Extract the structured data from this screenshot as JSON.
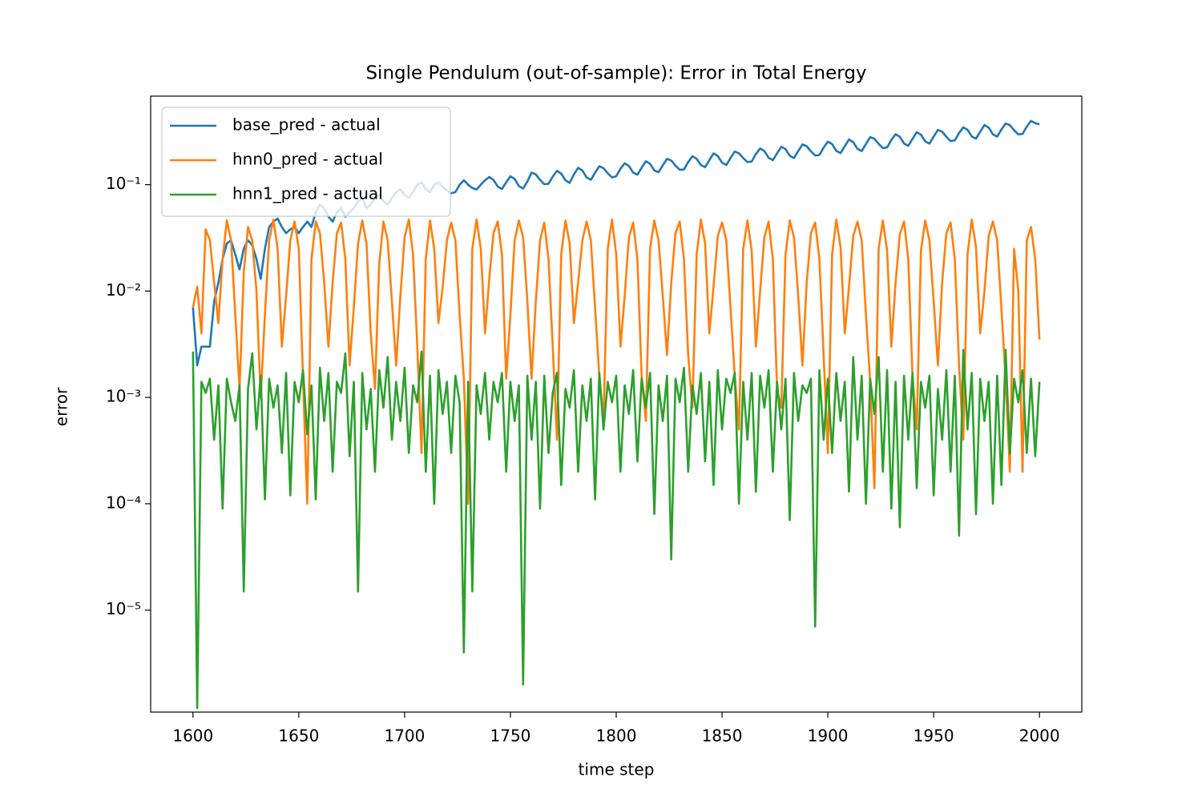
{
  "chart_data": {
    "type": "line",
    "title": "Single Pendulum (out-of-sample): Error in Total Energy",
    "xlabel": "time step",
    "ylabel": "error",
    "yscale": "log",
    "legend": "upper left",
    "xlim": [
      1580,
      2020
    ],
    "ylim": [
      1.1e-06,
      0.68
    ],
    "xticks": [
      1600,
      1650,
      1700,
      1750,
      1800,
      1850,
      1900,
      1950,
      2000
    ],
    "yticks": [
      {
        "value": 1e-05,
        "label": "10⁻⁵"
      },
      {
        "value": 0.0001,
        "label": "10⁻⁴"
      },
      {
        "value": 0.001,
        "label": "10⁻³"
      },
      {
        "value": 0.01,
        "label": "10⁻²"
      },
      {
        "value": 0.1,
        "label": "10⁻¹"
      }
    ],
    "x": [
      1600,
      1602,
      1604,
      1606,
      1608,
      1610,
      1612,
      1614,
      1616,
      1618,
      1620,
      1622,
      1624,
      1626,
      1628,
      1630,
      1632,
      1634,
      1636,
      1638,
      1640,
      1642,
      1644,
      1646,
      1648,
      1650,
      1652,
      1654,
      1656,
      1658,
      1660,
      1662,
      1664,
      1666,
      1668,
      1670,
      1672,
      1674,
      1676,
      1678,
      1680,
      1682,
      1684,
      1686,
      1688,
      1690,
      1692,
      1694,
      1696,
      1698,
      1700,
      1702,
      1704,
      1706,
      1708,
      1710,
      1712,
      1714,
      1716,
      1718,
      1720,
      1722,
      1724,
      1726,
      1728,
      1730,
      1732,
      1734,
      1736,
      1738,
      1740,
      1742,
      1744,
      1746,
      1748,
      1750,
      1752,
      1754,
      1756,
      1758,
      1760,
      1762,
      1764,
      1766,
      1768,
      1770,
      1772,
      1774,
      1776,
      1778,
      1780,
      1782,
      1784,
      1786,
      1788,
      1790,
      1792,
      1794,
      1796,
      1798,
      1800,
      1802,
      1804,
      1806,
      1808,
      1810,
      1812,
      1814,
      1816,
      1818,
      1820,
      1822,
      1824,
      1826,
      1828,
      1830,
      1832,
      1834,
      1836,
      1838,
      1840,
      1842,
      1844,
      1846,
      1848,
      1850,
      1852,
      1854,
      1856,
      1858,
      1860,
      1862,
      1864,
      1866,
      1868,
      1870,
      1872,
      1874,
      1876,
      1878,
      1880,
      1882,
      1884,
      1886,
      1888,
      1890,
      1892,
      1894,
      1896,
      1898,
      1900,
      1902,
      1904,
      1906,
      1908,
      1910,
      1912,
      1914,
      1916,
      1918,
      1920,
      1922,
      1924,
      1926,
      1928,
      1930,
      1932,
      1934,
      1936,
      1938,
      1940,
      1942,
      1944,
      1946,
      1948,
      1950,
      1952,
      1954,
      1956,
      1958,
      1960,
      1962,
      1964,
      1966,
      1968,
      1970,
      1972,
      1974,
      1976,
      1978,
      1980,
      1982,
      1984,
      1986,
      1988,
      1990,
      1992,
      1994,
      1996,
      1998,
      2000
    ],
    "series": [
      {
        "name": "base_pred - actual",
        "color": "#1f77b4",
        "values": [
          0.007,
          0.002,
          0.003,
          0.003,
          0.003,
          0.008,
          0.012,
          0.02,
          0.028,
          0.03,
          0.022,
          0.016,
          0.025,
          0.03,
          0.027,
          0.02,
          0.013,
          0.025,
          0.04,
          0.045,
          0.048,
          0.04,
          0.035,
          0.038,
          0.04,
          0.035,
          0.04,
          0.045,
          0.04,
          0.055,
          0.065,
          0.06,
          0.05,
          0.045,
          0.055,
          0.06,
          0.05,
          0.055,
          0.06,
          0.07,
          0.075,
          0.06,
          0.065,
          0.075,
          0.08,
          0.07,
          0.065,
          0.075,
          0.085,
          0.09,
          0.08,
          0.075,
          0.085,
          0.1,
          0.105,
          0.09,
          0.085,
          0.1,
          0.105,
          0.095,
          0.088,
          0.083,
          0.085,
          0.1,
          0.11,
          0.1,
          0.093,
          0.09,
          0.1,
          0.11,
          0.118,
          0.111,
          0.096,
          0.091,
          0.105,
          0.12,
          0.113,
          0.097,
          0.092,
          0.107,
          0.13,
          0.125,
          0.111,
          0.101,
          0.102,
          0.119,
          0.135,
          0.127,
          0.11,
          0.104,
          0.125,
          0.144,
          0.136,
          0.117,
          0.111,
          0.129,
          0.149,
          0.143,
          0.128,
          0.117,
          0.12,
          0.141,
          0.159,
          0.15,
          0.13,
          0.124,
          0.144,
          0.166,
          0.157,
          0.136,
          0.131,
          0.152,
          0.175,
          0.169,
          0.151,
          0.138,
          0.139,
          0.163,
          0.185,
          0.175,
          0.153,
          0.146,
          0.17,
          0.197,
          0.186,
          0.161,
          0.153,
          0.178,
          0.205,
          0.197,
          0.178,
          0.163,
          0.165,
          0.194,
          0.219,
          0.207,
          0.179,
          0.17,
          0.197,
          0.227,
          0.216,
          0.187,
          0.178,
          0.207,
          0.239,
          0.23,
          0.206,
          0.188,
          0.19,
          0.223,
          0.254,
          0.241,
          0.208,
          0.198,
          0.23,
          0.266,
          0.251,
          0.217,
          0.207,
          0.241,
          0.28,
          0.27,
          0.242,
          0.221,
          0.224,
          0.263,
          0.298,
          0.282,
          0.244,
          0.232,
          0.27,
          0.311,
          0.295,
          0.255,
          0.243,
          0.283,
          0.327,
          0.315,
          0.282,
          0.257,
          0.261,
          0.306,
          0.346,
          0.328,
          0.284,
          0.271,
          0.315,
          0.364,
          0.344,
          0.297,
          0.283,
          0.33,
          0.376,
          0.363,
          0.325,
          0.297,
          0.3,
          0.352,
          0.398,
          0.379,
          0.37
        ]
      },
      {
        "name": "hnn0_pred - actual",
        "color": "#ff7f0e",
        "values": [
          0.007,
          0.011,
          0.004,
          0.038,
          0.03,
          0.012,
          0.005,
          0.02,
          0.046,
          0.03,
          0.006,
          0.0012,
          0.015,
          0.04,
          0.03,
          0.01,
          0.001,
          0.006,
          0.03,
          0.047,
          0.025,
          0.003,
          0.009,
          0.03,
          0.045,
          0.025,
          0.0015,
          0.0001,
          0.02,
          0.045,
          0.035,
          0.012,
          0.003,
          0.012,
          0.035,
          0.044,
          0.02,
          0.002,
          0.007,
          0.028,
          0.046,
          0.028,
          0.004,
          0.0012,
          0.018,
          0.045,
          0.03,
          0.008,
          0.002,
          0.009,
          0.032,
          0.047,
          0.022,
          0.003,
          0.0003,
          0.02,
          0.046,
          0.025,
          0.005,
          0.011,
          0.03,
          0.044,
          0.03,
          0.006,
          0.0015,
          0.0001,
          0.025,
          0.047,
          0.025,
          0.004,
          0.013,
          0.035,
          0.045,
          0.022,
          0.0015,
          0.006,
          0.03,
          0.046,
          0.032,
          0.008,
          0.0015,
          0.008,
          0.03,
          0.044,
          0.02,
          0.003,
          0.0004,
          0.022,
          0.046,
          0.028,
          0.005,
          0.012,
          0.03,
          0.045,
          0.03,
          0.007,
          0.0016,
          0.0006,
          0.025,
          0.047,
          0.022,
          0.003,
          0.009,
          0.032,
          0.044,
          0.02,
          0.0016,
          0.0006,
          0.025,
          0.046,
          0.03,
          0.009,
          0.0025,
          0.012,
          0.035,
          0.045,
          0.02,
          0.0025,
          0.0008,
          0.022,
          0.047,
          0.028,
          0.004,
          0.011,
          0.033,
          0.044,
          0.03,
          0.007,
          0.0016,
          0.0005,
          0.025,
          0.046,
          0.024,
          0.003,
          0.01,
          0.032,
          0.045,
          0.02,
          0.0012,
          0.0008,
          0.022,
          0.046,
          0.032,
          0.009,
          0.002,
          0.012,
          0.035,
          0.044,
          0.02,
          0.0025,
          0.0003,
          0.022,
          0.047,
          0.026,
          0.004,
          0.011,
          0.033,
          0.045,
          0.03,
          0.006,
          0.0014,
          0.00014,
          0.025,
          0.046,
          0.024,
          0.003,
          0.012,
          0.034,
          0.045,
          0.02,
          0.0016,
          0.0005,
          0.024,
          0.046,
          0.03,
          0.008,
          0.002,
          0.012,
          0.035,
          0.044,
          0.02,
          0.002,
          0.0004,
          0.022,
          0.047,
          0.026,
          0.004,
          0.01,
          0.033,
          0.045,
          0.03,
          0.007,
          0.0015,
          0.0002,
          0.025,
          0.01,
          0.0002,
          0.03,
          0.04,
          0.02,
          0.0035
        ]
      },
      {
        "name": "hnn1_pred - actual",
        "color": "#2ca02c",
        "values": [
          0.0027,
          1.2e-06,
          0.0014,
          0.0011,
          0.0015,
          0.0004,
          0.0013,
          9e-05,
          0.0015,
          0.0009,
          0.0006,
          0.0013,
          1.5e-05,
          0.0012,
          0.0026,
          0.0005,
          0.0016,
          0.00011,
          0.0015,
          0.0008,
          0.0013,
          0.0003,
          0.0017,
          0.00012,
          0.0014,
          0.0009,
          0.0018,
          0.00045,
          0.0013,
          0.00011,
          0.0019,
          0.0006,
          0.0017,
          0.0002,
          0.0014,
          0.0011,
          0.0026,
          0.00028,
          0.0014,
          1.5e-05,
          0.0017,
          0.0005,
          0.0012,
          0.0002,
          0.0018,
          0.0008,
          0.0024,
          0.0004,
          0.0014,
          0.0006,
          0.0019,
          0.0003,
          0.0013,
          0.0009,
          0.0027,
          0.0002,
          0.0016,
          0.0001,
          0.0018,
          0.0007,
          0.0014,
          0.0003,
          0.0016,
          0.0009,
          4e-06,
          0.0014,
          1.5e-05,
          0.0013,
          0.0007,
          0.0017,
          0.0004,
          0.0014,
          0.0009,
          0.0017,
          0.0002,
          0.0014,
          0.0006,
          0.0013,
          2e-06,
          0.0016,
          0.0004,
          0.0014,
          9e-05,
          0.0016,
          0.0003,
          0.0011,
          0.0017,
          0.00015,
          0.0012,
          0.0008,
          0.0018,
          0.0002,
          0.0013,
          0.0006,
          0.0015,
          0.00011,
          0.0017,
          0.0005,
          0.0014,
          0.0009,
          0.0016,
          0.0002,
          0.0013,
          0.0007,
          0.0018,
          0.00025,
          0.0015,
          0.0008,
          0.0017,
          8e-05,
          0.0013,
          0.0006,
          0.0016,
          3e-05,
          0.0015,
          0.0009,
          0.0019,
          0.0002,
          0.0013,
          0.0007,
          0.0017,
          0.00025,
          0.0014,
          0.00015,
          0.0018,
          0.0005,
          0.0015,
          0.0011,
          0.0017,
          0.0001,
          0.0014,
          0.0004,
          0.0017,
          0.00013,
          0.0016,
          0.0008,
          0.0018,
          0.0002,
          0.0014,
          0.0005,
          0.0015,
          7e-05,
          0.0017,
          0.0006,
          0.0013,
          0.0011,
          0.0015,
          7e-06,
          0.0018,
          0.0004,
          0.0015,
          0.0003,
          0.0017,
          0.0006,
          0.0014,
          0.00013,
          0.0024,
          0.0004,
          0.0016,
          0.0001,
          0.0015,
          0.0007,
          0.0024,
          0.0002,
          0.0018,
          9e-05,
          0.0014,
          6e-05,
          0.0016,
          0.0004,
          0.0017,
          0.00014,
          0.0014,
          0.0008,
          0.0016,
          0.00012,
          0.0012,
          0.0004,
          0.0018,
          0.0002,
          0.0016,
          5e-05,
          0.0028,
          0.0005,
          0.0017,
          8e-05,
          0.0015,
          0.0006,
          0.0014,
          0.0001,
          0.0016,
          0.00015,
          0.0028,
          0.0003,
          0.0015,
          0.0009,
          0.0018,
          0.0003,
          0.0015,
          0.00028,
          0.0014
        ]
      }
    ]
  }
}
